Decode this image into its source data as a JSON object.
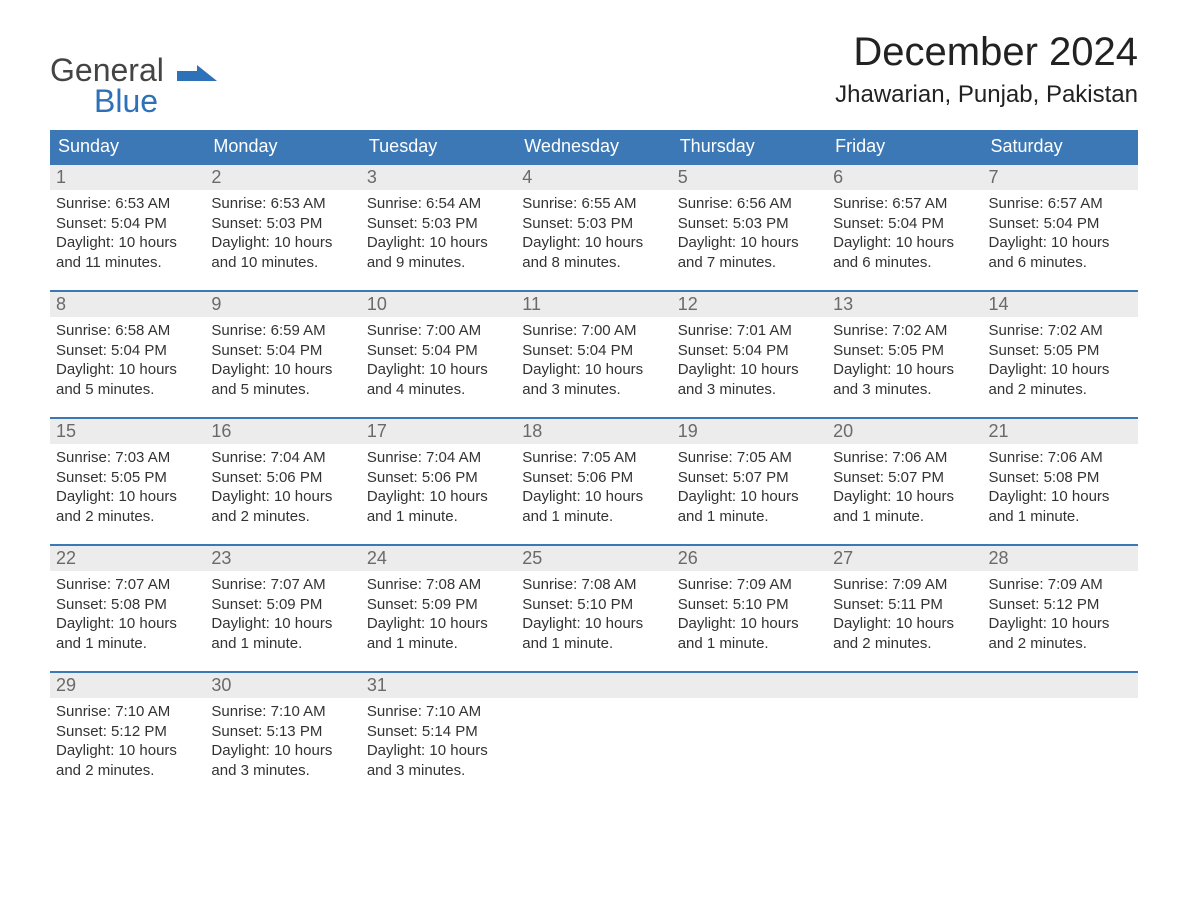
{
  "colors": {
    "header_bg": "#3b78b5",
    "header_text": "#ffffff",
    "daynum_bg": "#ececec",
    "daynum_text": "#6a6a6a",
    "week_border": "#3b78b5",
    "body_text": "#333333",
    "logo_blue": "#2d72b8"
  },
  "logo": {
    "line1": "General",
    "line2": "Blue"
  },
  "title": "December 2024",
  "location": "Jhawarian, Punjab, Pakistan",
  "dayheaders": [
    "Sunday",
    "Monday",
    "Tuesday",
    "Wednesday",
    "Thursday",
    "Friday",
    "Saturday"
  ],
  "weeks": [
    [
      {
        "num": "1",
        "sunrise": "Sunrise: 6:53 AM",
        "sunset": "Sunset: 5:04 PM",
        "day1": "Daylight: 10 hours",
        "day2": "and 11 minutes."
      },
      {
        "num": "2",
        "sunrise": "Sunrise: 6:53 AM",
        "sunset": "Sunset: 5:03 PM",
        "day1": "Daylight: 10 hours",
        "day2": "and 10 minutes."
      },
      {
        "num": "3",
        "sunrise": "Sunrise: 6:54 AM",
        "sunset": "Sunset: 5:03 PM",
        "day1": "Daylight: 10 hours",
        "day2": "and 9 minutes."
      },
      {
        "num": "4",
        "sunrise": "Sunrise: 6:55 AM",
        "sunset": "Sunset: 5:03 PM",
        "day1": "Daylight: 10 hours",
        "day2": "and 8 minutes."
      },
      {
        "num": "5",
        "sunrise": "Sunrise: 6:56 AM",
        "sunset": "Sunset: 5:03 PM",
        "day1": "Daylight: 10 hours",
        "day2": "and 7 minutes."
      },
      {
        "num": "6",
        "sunrise": "Sunrise: 6:57 AM",
        "sunset": "Sunset: 5:04 PM",
        "day1": "Daylight: 10 hours",
        "day2": "and 6 minutes."
      },
      {
        "num": "7",
        "sunrise": "Sunrise: 6:57 AM",
        "sunset": "Sunset: 5:04 PM",
        "day1": "Daylight: 10 hours",
        "day2": "and 6 minutes."
      }
    ],
    [
      {
        "num": "8",
        "sunrise": "Sunrise: 6:58 AM",
        "sunset": "Sunset: 5:04 PM",
        "day1": "Daylight: 10 hours",
        "day2": "and 5 minutes."
      },
      {
        "num": "9",
        "sunrise": "Sunrise: 6:59 AM",
        "sunset": "Sunset: 5:04 PM",
        "day1": "Daylight: 10 hours",
        "day2": "and 5 minutes."
      },
      {
        "num": "10",
        "sunrise": "Sunrise: 7:00 AM",
        "sunset": "Sunset: 5:04 PM",
        "day1": "Daylight: 10 hours",
        "day2": "and 4 minutes."
      },
      {
        "num": "11",
        "sunrise": "Sunrise: 7:00 AM",
        "sunset": "Sunset: 5:04 PM",
        "day1": "Daylight: 10 hours",
        "day2": "and 3 minutes."
      },
      {
        "num": "12",
        "sunrise": "Sunrise: 7:01 AM",
        "sunset": "Sunset: 5:04 PM",
        "day1": "Daylight: 10 hours",
        "day2": "and 3 minutes."
      },
      {
        "num": "13",
        "sunrise": "Sunrise: 7:02 AM",
        "sunset": "Sunset: 5:05 PM",
        "day1": "Daylight: 10 hours",
        "day2": "and 3 minutes."
      },
      {
        "num": "14",
        "sunrise": "Sunrise: 7:02 AM",
        "sunset": "Sunset: 5:05 PM",
        "day1": "Daylight: 10 hours",
        "day2": "and 2 minutes."
      }
    ],
    [
      {
        "num": "15",
        "sunrise": "Sunrise: 7:03 AM",
        "sunset": "Sunset: 5:05 PM",
        "day1": "Daylight: 10 hours",
        "day2": "and 2 minutes."
      },
      {
        "num": "16",
        "sunrise": "Sunrise: 7:04 AM",
        "sunset": "Sunset: 5:06 PM",
        "day1": "Daylight: 10 hours",
        "day2": "and 2 minutes."
      },
      {
        "num": "17",
        "sunrise": "Sunrise: 7:04 AM",
        "sunset": "Sunset: 5:06 PM",
        "day1": "Daylight: 10 hours",
        "day2": "and 1 minute."
      },
      {
        "num": "18",
        "sunrise": "Sunrise: 7:05 AM",
        "sunset": "Sunset: 5:06 PM",
        "day1": "Daylight: 10 hours",
        "day2": "and 1 minute."
      },
      {
        "num": "19",
        "sunrise": "Sunrise: 7:05 AM",
        "sunset": "Sunset: 5:07 PM",
        "day1": "Daylight: 10 hours",
        "day2": "and 1 minute."
      },
      {
        "num": "20",
        "sunrise": "Sunrise: 7:06 AM",
        "sunset": "Sunset: 5:07 PM",
        "day1": "Daylight: 10 hours",
        "day2": "and 1 minute."
      },
      {
        "num": "21",
        "sunrise": "Sunrise: 7:06 AM",
        "sunset": "Sunset: 5:08 PM",
        "day1": "Daylight: 10 hours",
        "day2": "and 1 minute."
      }
    ],
    [
      {
        "num": "22",
        "sunrise": "Sunrise: 7:07 AM",
        "sunset": "Sunset: 5:08 PM",
        "day1": "Daylight: 10 hours",
        "day2": "and 1 minute."
      },
      {
        "num": "23",
        "sunrise": "Sunrise: 7:07 AM",
        "sunset": "Sunset: 5:09 PM",
        "day1": "Daylight: 10 hours",
        "day2": "and 1 minute."
      },
      {
        "num": "24",
        "sunrise": "Sunrise: 7:08 AM",
        "sunset": "Sunset: 5:09 PM",
        "day1": "Daylight: 10 hours",
        "day2": "and 1 minute."
      },
      {
        "num": "25",
        "sunrise": "Sunrise: 7:08 AM",
        "sunset": "Sunset: 5:10 PM",
        "day1": "Daylight: 10 hours",
        "day2": "and 1 minute."
      },
      {
        "num": "26",
        "sunrise": "Sunrise: 7:09 AM",
        "sunset": "Sunset: 5:10 PM",
        "day1": "Daylight: 10 hours",
        "day2": "and 1 minute."
      },
      {
        "num": "27",
        "sunrise": "Sunrise: 7:09 AM",
        "sunset": "Sunset: 5:11 PM",
        "day1": "Daylight: 10 hours",
        "day2": "and 2 minutes."
      },
      {
        "num": "28",
        "sunrise": "Sunrise: 7:09 AM",
        "sunset": "Sunset: 5:12 PM",
        "day1": "Daylight: 10 hours",
        "day2": "and 2 minutes."
      }
    ],
    [
      {
        "num": "29",
        "sunrise": "Sunrise: 7:10 AM",
        "sunset": "Sunset: 5:12 PM",
        "day1": "Daylight: 10 hours",
        "day2": "and 2 minutes."
      },
      {
        "num": "30",
        "sunrise": "Sunrise: 7:10 AM",
        "sunset": "Sunset: 5:13 PM",
        "day1": "Daylight: 10 hours",
        "day2": "and 3 minutes."
      },
      {
        "num": "31",
        "sunrise": "Sunrise: 7:10 AM",
        "sunset": "Sunset: 5:14 PM",
        "day1": "Daylight: 10 hours",
        "day2": "and 3 minutes."
      },
      null,
      null,
      null,
      null
    ]
  ]
}
